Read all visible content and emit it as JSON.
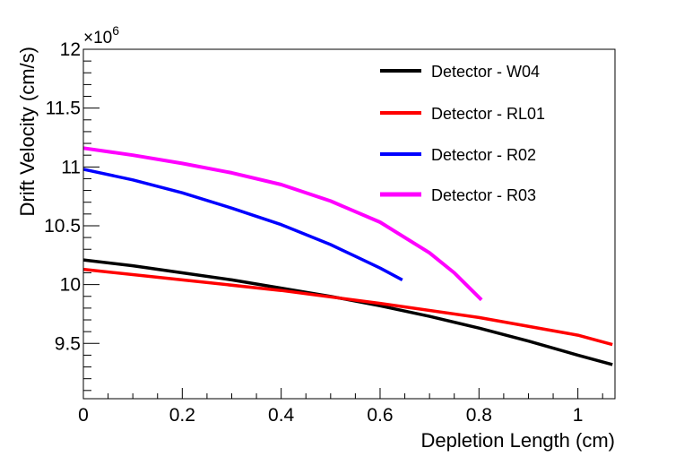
{
  "chart_data": {
    "type": "line",
    "title": "",
    "xlabel": "Depletion Length (cm)",
    "ylabel": "Drift Velocity (cm/s)",
    "y_multiplier_label": "×10",
    "y_multiplier_exp": "6",
    "xlim": [
      0,
      1.075
    ],
    "ylim": [
      9.03,
      12.0
    ],
    "x_major_ticks": [
      0,
      0.2,
      0.4,
      0.6,
      0.8,
      1
    ],
    "x_tick_labels": [
      "0",
      "0.2",
      "0.4",
      "0.6",
      "0.8",
      "1"
    ],
    "y_major_ticks": [
      9.5,
      10,
      10.5,
      11,
      11.5,
      12
    ],
    "y_tick_labels": [
      "9.5",
      "10",
      "10.5",
      "11",
      "11.5",
      "12"
    ],
    "legend_position": "top-right",
    "grid": false,
    "series": [
      {
        "name": "Detector - W04",
        "color": "#000000",
        "x": [
          0,
          0.1,
          0.2,
          0.3,
          0.4,
          0.5,
          0.6,
          0.7,
          0.8,
          0.9,
          1.0,
          1.07
        ],
        "values": [
          10.21,
          10.16,
          10.1,
          10.04,
          9.97,
          9.9,
          9.82,
          9.73,
          9.63,
          9.52,
          9.4,
          9.32
        ]
      },
      {
        "name": "Detector - RL01",
        "color": "#ff0000",
        "x": [
          0,
          0.2,
          0.4,
          0.6,
          0.8,
          1.0,
          1.07
        ],
        "values": [
          10.13,
          10.04,
          9.95,
          9.84,
          9.72,
          9.57,
          9.49
        ]
      },
      {
        "name": "Detector - R02",
        "color": "#0000ff",
        "x": [
          0,
          0.1,
          0.2,
          0.3,
          0.4,
          0.5,
          0.55,
          0.6,
          0.645
        ],
        "values": [
          10.98,
          10.89,
          10.78,
          10.65,
          10.51,
          10.34,
          10.24,
          10.14,
          10.04
        ]
      },
      {
        "name": "Detector - R03",
        "color": "#ff00ff",
        "x": [
          0,
          0.1,
          0.2,
          0.3,
          0.4,
          0.5,
          0.6,
          0.7,
          0.75,
          0.805
        ],
        "values": [
          11.16,
          11.1,
          11.03,
          10.95,
          10.85,
          10.71,
          10.53,
          10.27,
          10.1,
          9.87
        ]
      }
    ]
  }
}
